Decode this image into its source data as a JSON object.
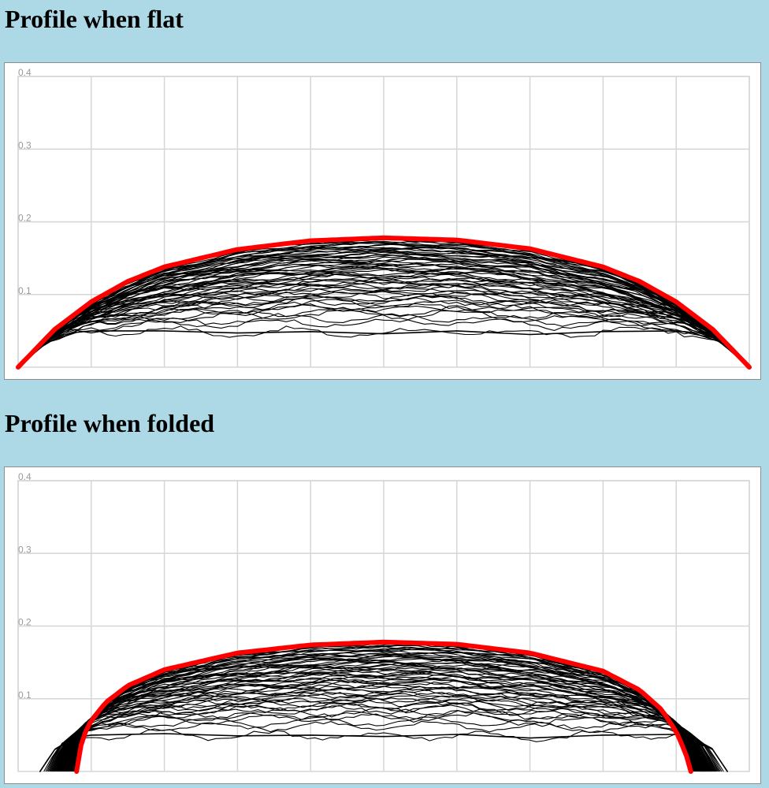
{
  "headings": {
    "flat": "Profile when flat",
    "folded": "Profile when folded"
  },
  "colors": {
    "background": "#add8e6",
    "grid": "#d6d6d6",
    "profile_lines": "#000000",
    "final_profile": "#ff0000"
  },
  "chart_data": [
    {
      "type": "line",
      "title": "Profile when flat",
      "ylim": [
        0,
        0.4
      ],
      "xlim": [
        0,
        1
      ],
      "y_ticks": [
        "0.1",
        "0.2",
        "0.3",
        "0.4"
      ],
      "grid": true,
      "legend": "none",
      "series": [
        {
          "role": "final-profile",
          "color": "#ff0000",
          "x": [
            0,
            0.05,
            0.1,
            0.15,
            0.2,
            0.3,
            0.4,
            0.5,
            0.6,
            0.7,
            0.8,
            0.85,
            0.9,
            0.95,
            1.0
          ],
          "y": [
            0,
            0.052,
            0.09,
            0.118,
            0.138,
            0.162,
            0.174,
            0.178,
            0.175,
            0.163,
            0.138,
            0.118,
            0.09,
            0.052,
            0
          ]
        },
        {
          "role": "lowest-profile",
          "color": "#000000",
          "x": [
            0,
            0.04,
            0.08,
            0.1,
            0.2,
            0.3,
            0.4,
            0.5,
            0.6,
            0.7,
            0.8,
            0.9,
            0.92,
            0.96,
            1.0
          ],
          "y": [
            0,
            0.035,
            0.048,
            0.05,
            0.05,
            0.047,
            0.049,
            0.046,
            0.05,
            0.045,
            0.049,
            0.05,
            0.048,
            0.035,
            0
          ]
        }
      ],
      "intermediate_profile_count": 60
    },
    {
      "type": "line",
      "title": "Profile when folded",
      "ylim": [
        0,
        0.4
      ],
      "xlim": [
        0,
        1
      ],
      "y_ticks": [
        "0.1",
        "0.2",
        "0.3",
        "0.4"
      ],
      "grid": true,
      "legend": "none",
      "series": [
        {
          "role": "final-profile",
          "color": "#ff0000",
          "x": [
            0.08,
            0.083,
            0.09,
            0.1,
            0.12,
            0.15,
            0.2,
            0.3,
            0.4,
            0.5,
            0.6,
            0.7,
            0.8,
            0.85,
            0.88,
            0.9,
            0.913,
            0.92
          ],
          "y": [
            0,
            0.025,
            0.05,
            0.07,
            0.095,
            0.118,
            0.14,
            0.163,
            0.174,
            0.178,
            0.175,
            0.163,
            0.138,
            0.112,
            0.085,
            0.055,
            0.025,
            0
          ]
        },
        {
          "role": "lowest-profile",
          "color": "#000000",
          "x": [
            0.03,
            0.05,
            0.08,
            0.1,
            0.2,
            0.3,
            0.4,
            0.5,
            0.6,
            0.7,
            0.8,
            0.9,
            0.92,
            0.95,
            0.97
          ],
          "y": [
            0,
            0.03,
            0.047,
            0.05,
            0.052,
            0.049,
            0.05,
            0.048,
            0.051,
            0.046,
            0.05,
            0.051,
            0.047,
            0.03,
            0
          ]
        }
      ],
      "intermediate_profile_count": 60
    }
  ]
}
